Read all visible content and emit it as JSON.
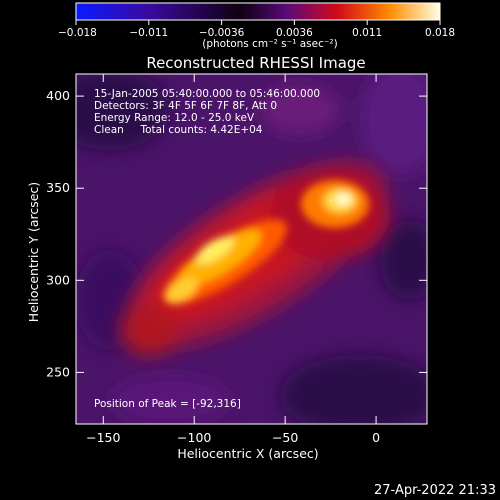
{
  "colorbar": {
    "ticks": [
      "-0.018",
      "-0.011",
      "-0.0036",
      "0.0036",
      "0.011",
      "0.018"
    ],
    "units_text": "(photons cm⁻² s⁻¹ asec⁻²)",
    "colors": [
      "#0a1aff",
      "#3a0aa0",
      "#100010",
      "#5a0a7a",
      "#d40a1a",
      "#ff8a00",
      "#ffffe0"
    ]
  },
  "title": "Reconstructed RHESSI Image",
  "info_lines": [
    "15-Jan-2005 05:40:00.000 to 05:46:00.000",
    "Detectors: 3F 4F 5F 6F 7F 8F, Att 0",
    "Energy Range: 12.0 - 25.0 keV",
    "Clean     Total counts: 4.42E+04"
  ],
  "peak_text": "Position of Peak = [-92,316]",
  "timestamp": "27-Apr-2022 21:33",
  "chart_data": {
    "type": "heatmap",
    "title": "Reconstructed RHESSI Image",
    "xlabel": "Heliocentric X (arcsec)",
    "ylabel": "Heliocentric Y (arcsec)",
    "xlim": [
      -165,
      28
    ],
    "ylim": [
      222,
      412
    ],
    "xticks": [
      -150,
      -100,
      -50,
      0
    ],
    "yticks": [
      250,
      300,
      350,
      400
    ],
    "colorbar_range": [
      -0.018,
      0.018
    ],
    "sources": [
      {
        "x": -92,
        "y": 316,
        "peak": 1.0
      },
      {
        "x": -25,
        "y": 343,
        "peak": 0.9
      }
    ],
    "peak_position": [
      -92,
      316
    ]
  }
}
